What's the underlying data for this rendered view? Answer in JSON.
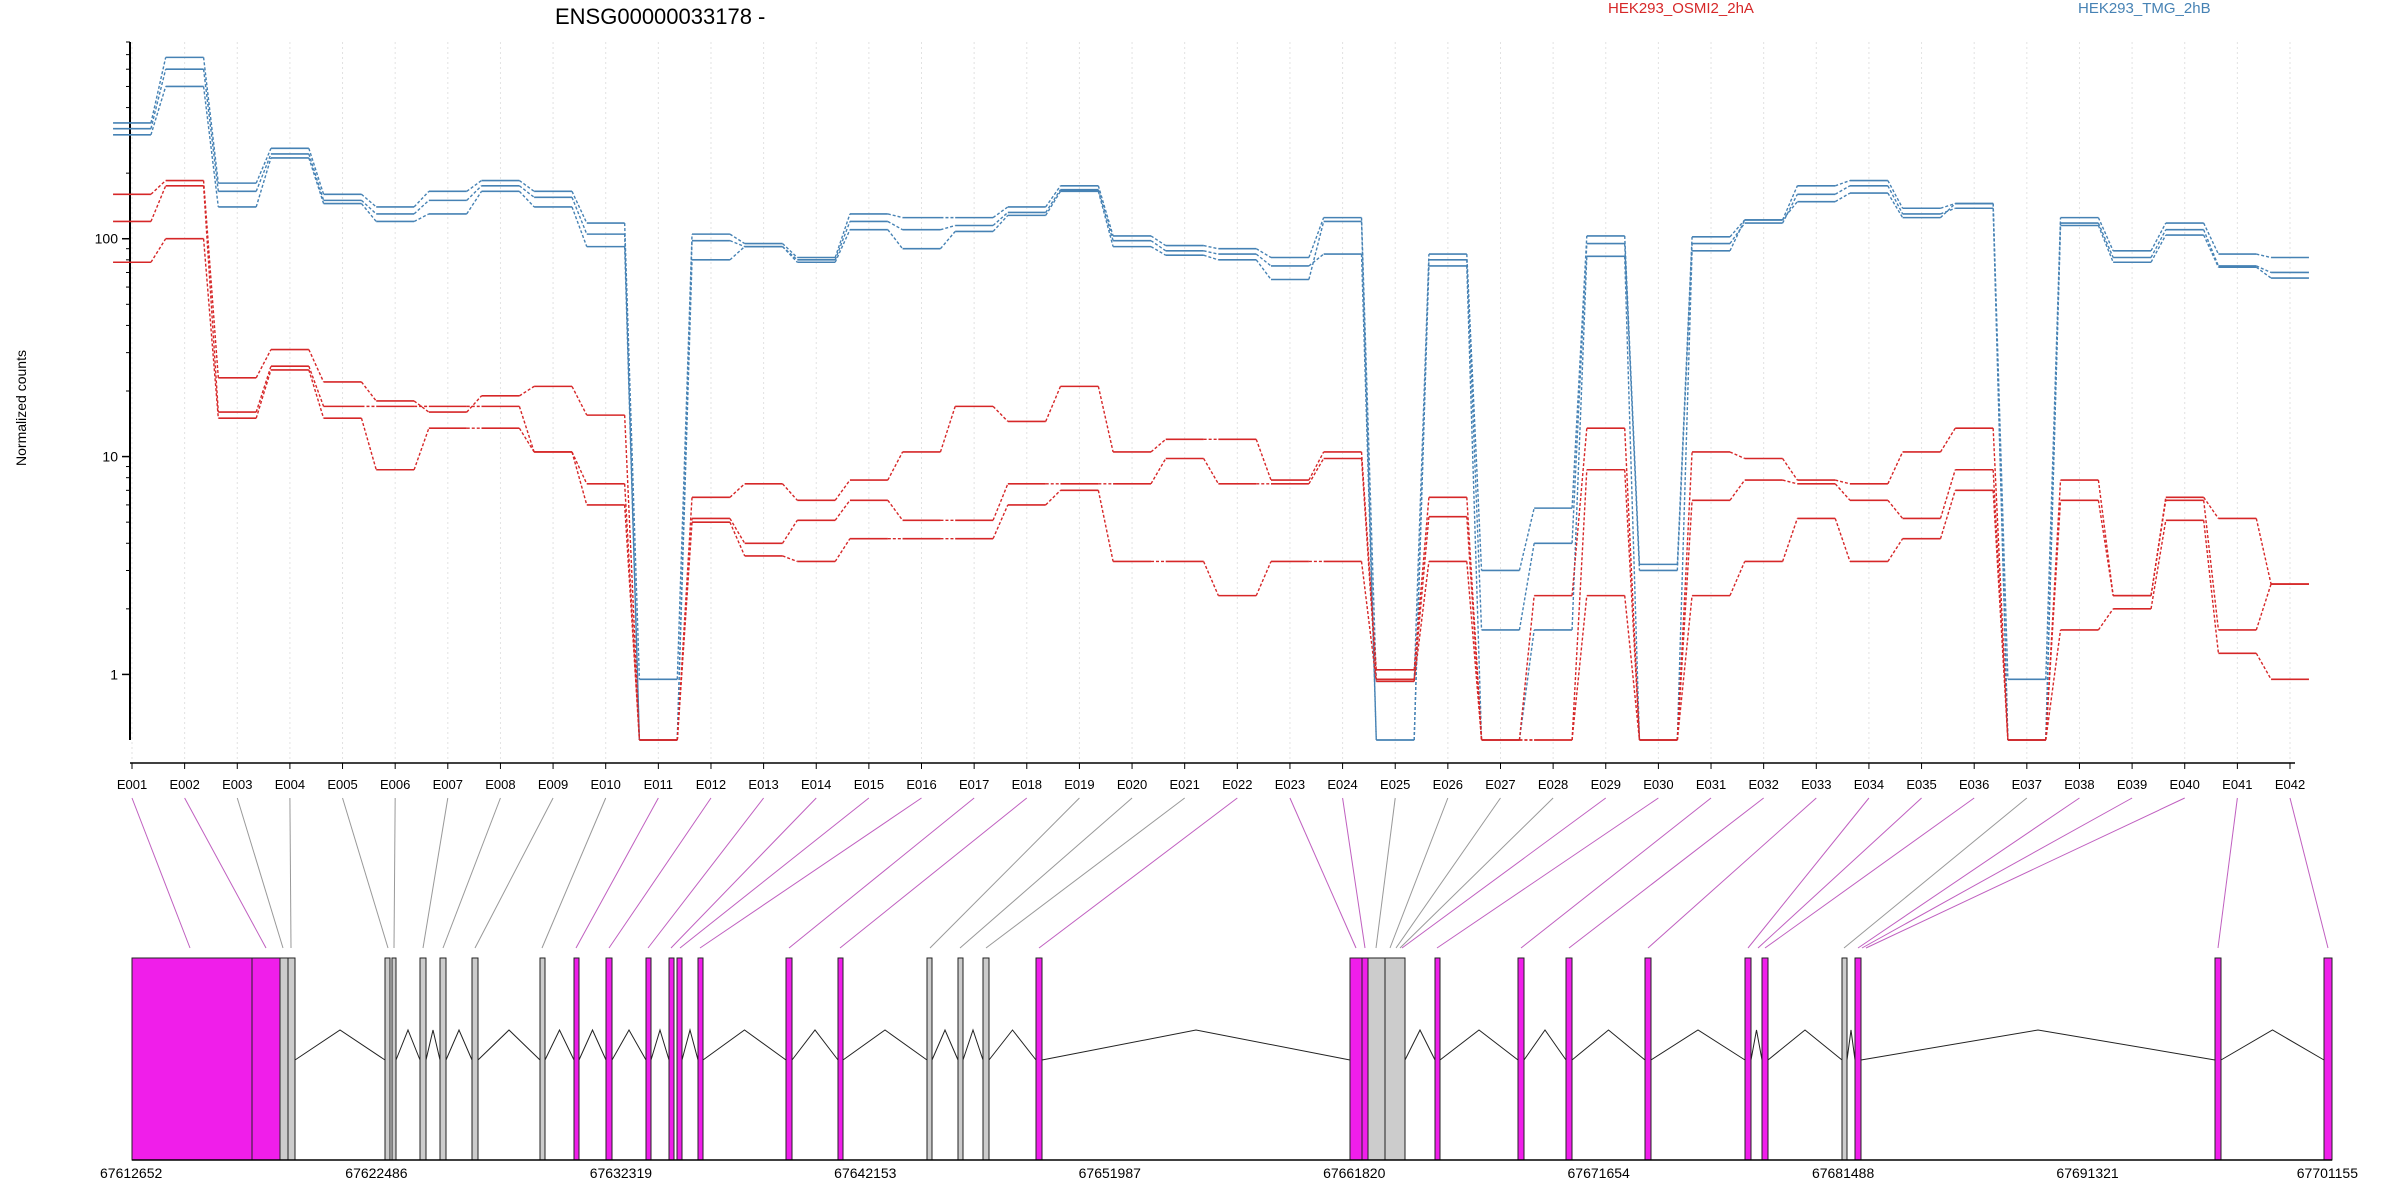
{
  "chart_data": {
    "type": "line",
    "title": "ENSG00000033178 -",
    "ylabel": "Normalized counts",
    "y_scale": "log",
    "ylim": [
      0.5,
      800
    ],
    "y_ticks": [
      1,
      10,
      100
    ],
    "legend": [
      {
        "name": "HEK293_OSMI2_2hA",
        "color": "#d62728"
      },
      {
        "name": "HEK293_TMG_2hB",
        "color": "#4682b4"
      }
    ],
    "categories": [
      "E001",
      "E002",
      "E003",
      "E004",
      "E005",
      "E006",
      "E007",
      "E008",
      "E009",
      "E010",
      "E011",
      "E012",
      "E013",
      "E014",
      "E015",
      "E016",
      "E017",
      "E018",
      "E019",
      "E020",
      "E021",
      "E022",
      "E023",
      "E024",
      "E025",
      "E026",
      "E027",
      "E028",
      "E029",
      "E030",
      "E031",
      "E032",
      "E033",
      "E034",
      "E035",
      "E036",
      "E037",
      "E038",
      "E039",
      "E040",
      "E041",
      "E042"
    ],
    "series": [
      {
        "group": "HEK293_TMG_2hB",
        "color": "#4682b4",
        "values": [
          340,
          680,
          180,
          260,
          160,
          140,
          165,
          185,
          165,
          118,
          0.95,
          105,
          95,
          82,
          130,
          125,
          125,
          140,
          175,
          103,
          93,
          90,
          82,
          125,
          0.93,
          85,
          3.0,
          5.8,
          103,
          3.2,
          102,
          122,
          175,
          185,
          138,
          145,
          0.95,
          125,
          88,
          118,
          85,
          82
        ]
      },
      {
        "group": "HEK293_TMG_2hB",
        "color": "#4682b4",
        "values": [
          320,
          600,
          165,
          245,
          150,
          130,
          150,
          175,
          155,
          105,
          0.5,
          98,
          92,
          80,
          120,
          110,
          115,
          132,
          168,
          98,
          88,
          85,
          75,
          85,
          0.5,
          80,
          1.6,
          4.0,
          95,
          3.0,
          95,
          118,
          160,
          175,
          130,
          138,
          0.5,
          118,
          82,
          110,
          75,
          70
        ]
      },
      {
        "group": "HEK293_TMG_2hB",
        "color": "#4682b4",
        "values": [
          300,
          500,
          140,
          235,
          145,
          120,
          130,
          165,
          140,
          92,
          0.5,
          80,
          92,
          78,
          110,
          90,
          108,
          128,
          165,
          92,
          84,
          80,
          65,
          120,
          0.5,
          75,
          0.5,
          1.6,
          83,
          0.5,
          88,
          122,
          148,
          162,
          125,
          145,
          0.5,
          115,
          78,
          104,
          74,
          66
        ]
      },
      {
        "group": "HEK293_OSMI2_2hA",
        "color": "#d62728",
        "values": [
          160,
          185,
          23,
          31,
          22,
          18,
          16,
          19,
          21,
          15.5,
          0.5,
          6.5,
          7.5,
          6.3,
          7.8,
          10.5,
          17,
          14.5,
          21,
          10.5,
          12,
          12,
          7.8,
          10.5,
          1.05,
          6.5,
          0.5,
          2.3,
          13.5,
          0.5,
          10.5,
          9.8,
          7.8,
          7.5,
          10.5,
          13.5,
          0.5,
          7.8,
          2.3,
          6.5,
          5.2,
          2.6
        ]
      },
      {
        "group": "HEK293_OSMI2_2hA",
        "color": "#d62728",
        "values": [
          120,
          175,
          16,
          26,
          17,
          17,
          17,
          17,
          10.5,
          7.5,
          0.5,
          5.2,
          4.0,
          5.1,
          6.3,
          5.1,
          5.1,
          7.5,
          7.5,
          7.5,
          9.8,
          7.5,
          7.5,
          9.8,
          0.95,
          5.3,
          0.5,
          0.5,
          8.7,
          0.5,
          6.3,
          7.8,
          7.5,
          6.3,
          5.2,
          8.7,
          0.5,
          6.3,
          2.3,
          6.3,
          1.6,
          2.6
        ]
      },
      {
        "group": "HEK293_OSMI2_2hA",
        "color": "#d62728",
        "values": [
          78,
          100,
          15,
          25,
          15,
          8.7,
          13.5,
          13.5,
          10.5,
          6.0,
          0.5,
          5.0,
          3.5,
          3.3,
          4.2,
          4.2,
          4.2,
          6.0,
          7.0,
          3.3,
          3.3,
          2.3,
          3.3,
          3.3,
          0.93,
          3.3,
          0.5,
          0.5,
          2.3,
          0.5,
          2.3,
          3.3,
          5.2,
          3.3,
          4.2,
          7.0,
          0.5,
          1.6,
          2.0,
          5.1,
          1.25,
          0.95
        ]
      }
    ],
    "gene_model": {
      "coord_labels": [
        "67612652",
        "67622486",
        "67632319",
        "67642153",
        "67651987",
        "67661820",
        "67671654",
        "67681488",
        "67691321",
        "67701155"
      ]
    }
  }
}
